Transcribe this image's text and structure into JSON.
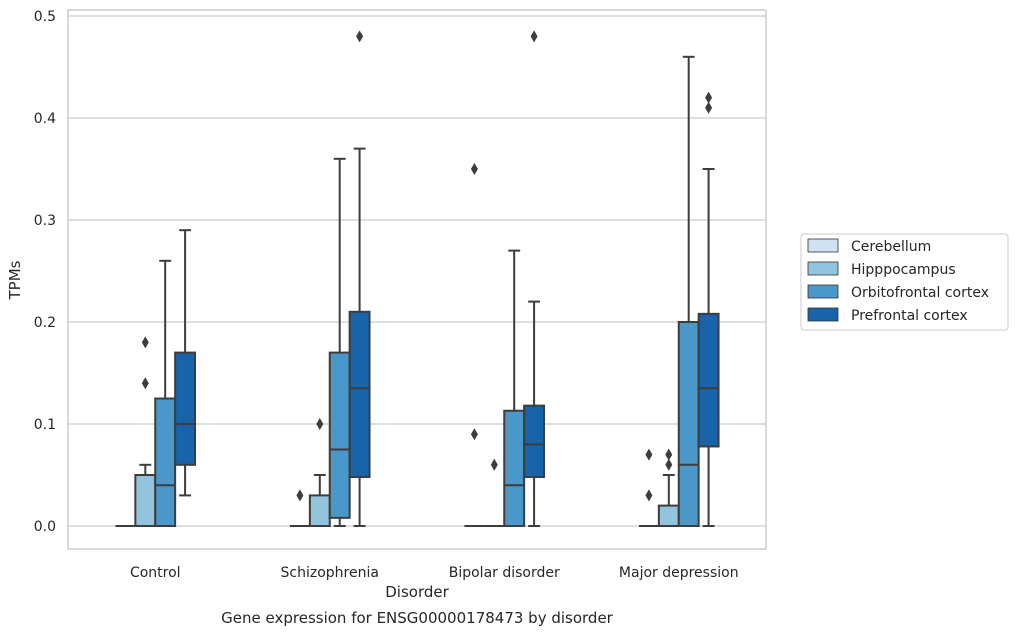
{
  "chart_data": {
    "type": "box",
    "caption": "Gene expression for ENSG00000178473 by disorder",
    "xlabel": "Disorder",
    "ylabel": "TPMs",
    "ylim": [
      -0.023,
      0.505
    ],
    "yticks": [
      0.0,
      0.1,
      0.2,
      0.3,
      0.4,
      0.5
    ],
    "ytick_labels": [
      "0.0",
      "0.1",
      "0.2",
      "0.3",
      "0.4",
      "0.5"
    ],
    "grid": "horizontal",
    "legend_position": "right",
    "categories": [
      "Control",
      "Schizophrenia",
      "Bipolar disorder",
      "Major depression"
    ],
    "series": [
      {
        "name": "Cerebellum",
        "color": "#cfe1f2",
        "boxes": [
          {
            "whislo": 0,
            "q1": 0,
            "med": 0,
            "q3": 0,
            "whishi": 0,
            "fliers": []
          },
          {
            "whislo": 0,
            "q1": 0,
            "med": 0,
            "q3": 0,
            "whishi": 0,
            "fliers": [
              0.03
            ]
          },
          {
            "whislo": 0,
            "q1": 0,
            "med": 0,
            "q3": 0,
            "whishi": 0,
            "fliers": [
              0.35,
              0.09
            ]
          },
          {
            "whislo": 0,
            "q1": 0,
            "med": 0,
            "q3": 0,
            "whishi": 0,
            "fliers": [
              0.07,
              0.03
            ]
          }
        ]
      },
      {
        "name": "Hipppocampus",
        "color": "#93c4de",
        "boxes": [
          {
            "whislo": 0,
            "q1": 0,
            "med": 0,
            "q3": 0.05,
            "whishi": 0.06,
            "fliers": [
              0.18,
              0.14
            ]
          },
          {
            "whislo": 0,
            "q1": 0,
            "med": 0,
            "q3": 0.03,
            "whishi": 0.05,
            "fliers": [
              0.1
            ]
          },
          {
            "whislo": 0,
            "q1": 0,
            "med": 0,
            "q3": 0,
            "whishi": 0,
            "fliers": [
              0.06
            ]
          },
          {
            "whislo": 0,
            "q1": 0,
            "med": 0,
            "q3": 0.02,
            "whishi": 0.05,
            "fliers": [
              0.07,
              0.06
            ]
          }
        ]
      },
      {
        "name": "Orbitofrontal cortex",
        "color": "#4a98c9",
        "boxes": [
          {
            "whislo": 0,
            "q1": 0,
            "med": 0.04,
            "q3": 0.125,
            "whishi": 0.26,
            "fliers": []
          },
          {
            "whislo": 0,
            "q1": 0.008,
            "med": 0.075,
            "q3": 0.17,
            "whishi": 0.36,
            "fliers": []
          },
          {
            "whislo": 0,
            "q1": 0,
            "med": 0.04,
            "q3": 0.113,
            "whishi": 0.27,
            "fliers": []
          },
          {
            "whislo": 0,
            "q1": 0,
            "med": 0.06,
            "q3": 0.2,
            "whishi": 0.46,
            "fliers": []
          }
        ]
      },
      {
        "name": "Prefrontal cortex",
        "color": "#1764ab",
        "boxes": [
          {
            "whislo": 0.03,
            "q1": 0.06,
            "med": 0.1,
            "q3": 0.17,
            "whishi": 0.29,
            "fliers": []
          },
          {
            "whislo": 0,
            "q1": 0.048,
            "med": 0.135,
            "q3": 0.21,
            "whishi": 0.37,
            "fliers": [
              0.48
            ]
          },
          {
            "whislo": 0,
            "q1": 0.048,
            "med": 0.08,
            "q3": 0.118,
            "whishi": 0.22,
            "fliers": [
              0.48
            ]
          },
          {
            "whislo": 0,
            "q1": 0.078,
            "med": 0.135,
            "q3": 0.208,
            "whishi": 0.35,
            "fliers": [
              0.42,
              0.41
            ]
          }
        ]
      }
    ]
  }
}
